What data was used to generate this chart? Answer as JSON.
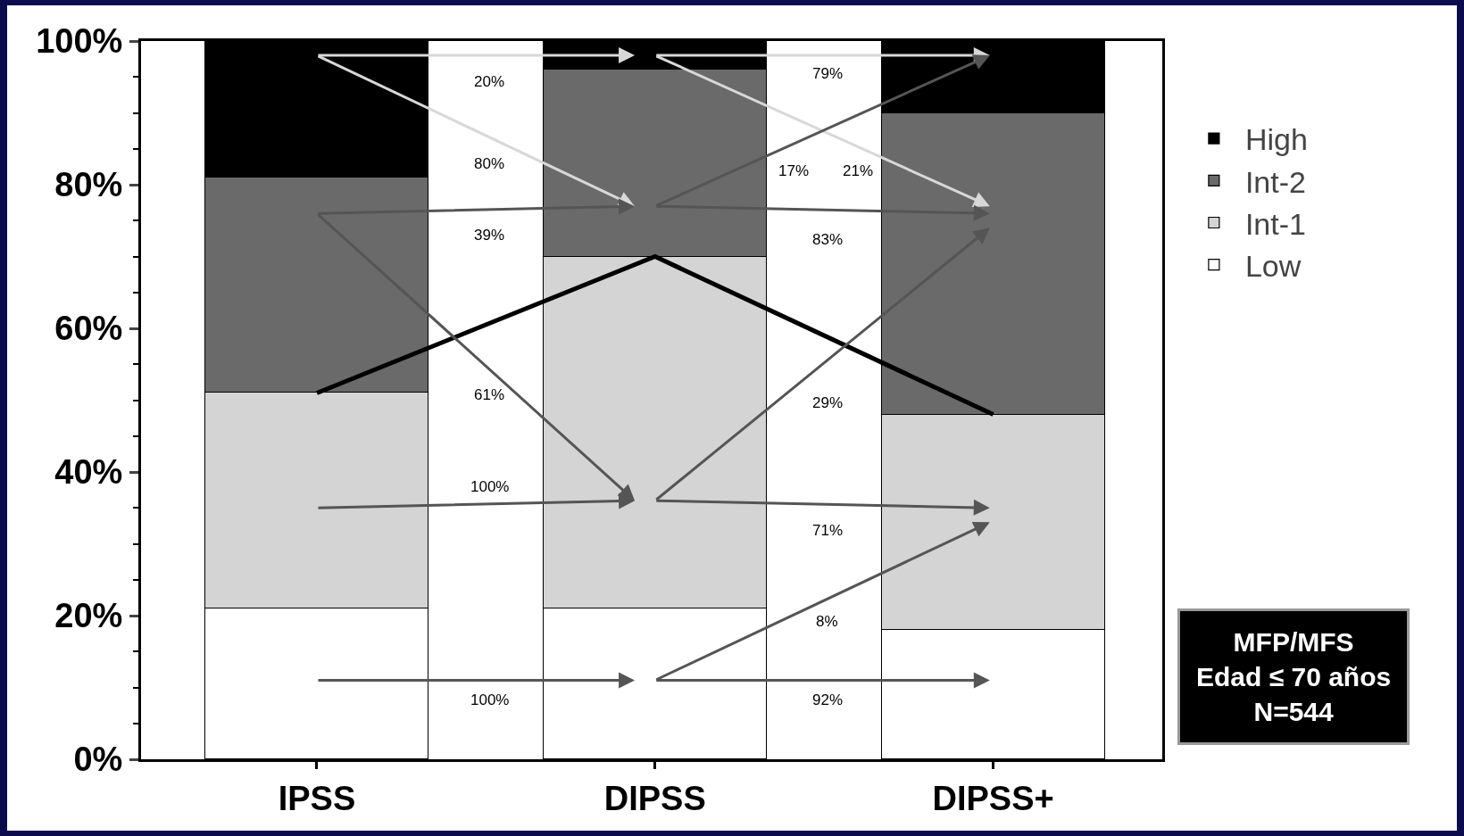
{
  "chart_data": {
    "type": "bar",
    "stacked": true,
    "categories": [
      "IPSS",
      "DIPSS",
      "DIPSS+"
    ],
    "series": [
      {
        "name": "Low",
        "color": "#ffffff",
        "values": [
          21,
          21,
          18
        ]
      },
      {
        "name": "Int-1",
        "color": "#d4d4d4",
        "values": [
          30,
          49,
          30
        ]
      },
      {
        "name": "Int-2",
        "color": "#6a6a6a",
        "values": [
          30,
          26,
          42
        ]
      },
      {
        "name": "High",
        "color": "#000000",
        "values": [
          19,
          4,
          10
        ]
      },
      {
        "type": "line",
        "color": "#000000",
        "values": [
          51,
          70,
          48
        ]
      }
    ],
    "ylim": [
      0,
      100
    ],
    "yticks": [
      {
        "value": 0,
        "label": "0%"
      },
      {
        "value": 20,
        "label": "20%"
      },
      {
        "value": 40,
        "label": "40%"
      },
      {
        "value": 60,
        "label": "60%"
      },
      {
        "value": 80,
        "label": "80%"
      },
      {
        "value": 100,
        "label": "100%"
      }
    ],
    "grid": false,
    "legend": "top right",
    "annotations": [
      "20%",
      "80%",
      "39%",
      "61%",
      "100%",
      "100%",
      "79%",
      "17%",
      "21%",
      "83%",
      "29%",
      "71%",
      "8%",
      "92%",
      "MFP/MFS\nEdad ≤ 70 años\nN=544"
    ]
  }
}
